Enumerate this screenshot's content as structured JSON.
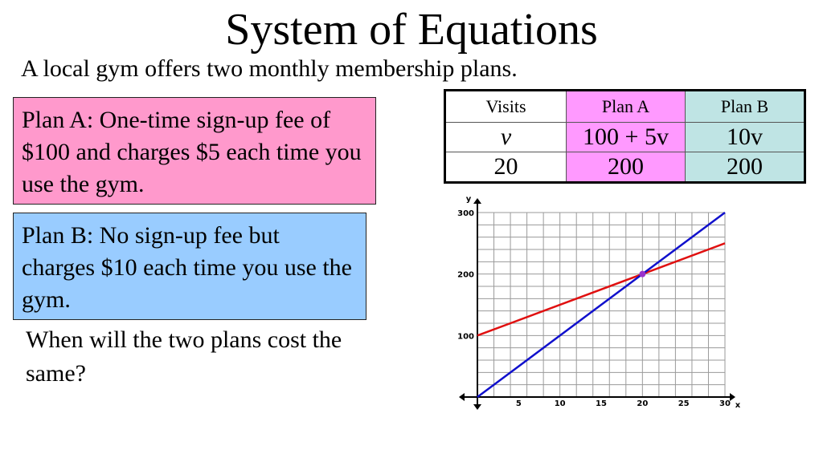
{
  "title": "System of Equations",
  "subtitle": "A local gym offers two monthly membership plans.",
  "plan_a": "Plan A: One-time sign-up fee of $100 and charges $5 each time you use the gym.",
  "plan_b": "Plan B:  No sign-up fee but charges $10 each time you use the gym.",
  "question": "When will the two plans cost the same?",
  "table": {
    "headers": [
      "Visits",
      "Plan A",
      "Plan B"
    ],
    "rows": [
      [
        "v",
        "100 + 5v",
        "10v"
      ],
      [
        "20",
        "200",
        "200"
      ]
    ]
  },
  "colors": {
    "plan_a_box": "#ff99cc",
    "plan_b_box": "#99ccff",
    "plan_a_col": "#ff99ff",
    "plan_b_col": "#bfe4e4",
    "line_a": "#e01010",
    "line_b": "#1010cc",
    "intersection": "#9933cc"
  },
  "chart_data": {
    "type": "line",
    "xlabel": "x",
    "ylabel": "y",
    "xlim": [
      0,
      30
    ],
    "ylim": [
      0,
      300
    ],
    "x_ticks": [
      "5",
      "10",
      "15",
      "20",
      "25",
      "30"
    ],
    "y_ticks": [
      "100",
      "200",
      "300"
    ],
    "grid": true,
    "series": [
      {
        "x": [
          0,
          30
        ],
        "y": [
          100,
          250
        ],
        "color": "#e01010"
      },
      {
        "x": [
          0,
          30
        ],
        "y": [
          0,
          300
        ],
        "color": "#1010cc"
      }
    ],
    "points": [
      {
        "x": 20,
        "y": 200
      }
    ]
  }
}
